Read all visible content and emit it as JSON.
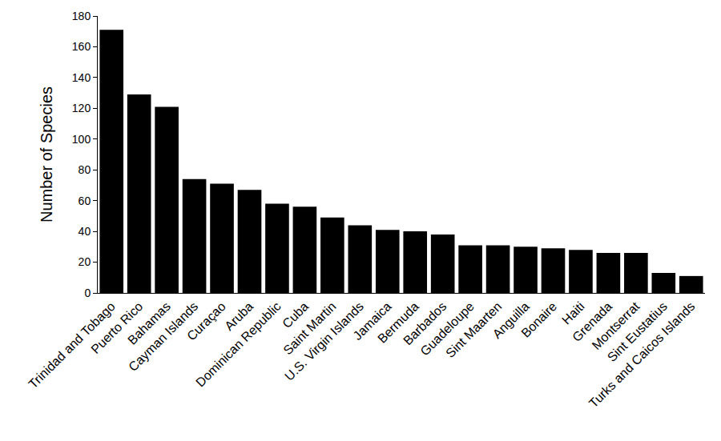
{
  "chart_data": {
    "type": "bar",
    "y_label": "Number of Species",
    "categories": [
      "Trinidad and Tobago",
      "Puerto Rico",
      "Bahamas",
      "Cayman Islands",
      "Curaçao",
      "Aruba",
      "Dominican Republic",
      "Cuba",
      "Saint Martin",
      "U.S. Virgin Islands",
      "Jamaica",
      "Bermuda",
      "Barbados",
      "Guadeloupe",
      "Sint Maarten",
      "Anguilla",
      "Bonaire",
      "Haiti",
      "Grenada",
      "Montserrat",
      "Sint Eustatius",
      "Turks and Caicos Islands"
    ],
    "values": [
      171,
      129,
      121,
      74,
      71,
      67,
      58,
      56,
      49,
      44,
      41,
      40,
      38,
      31,
      31,
      30,
      29,
      28,
      26,
      26,
      13,
      11
    ],
    "color": "#000000",
    "ylim": [
      0,
      180
    ],
    "yticks": [
      0,
      20,
      40,
      60,
      80,
      100,
      120,
      140,
      160,
      180
    ],
    "grid": false
  }
}
